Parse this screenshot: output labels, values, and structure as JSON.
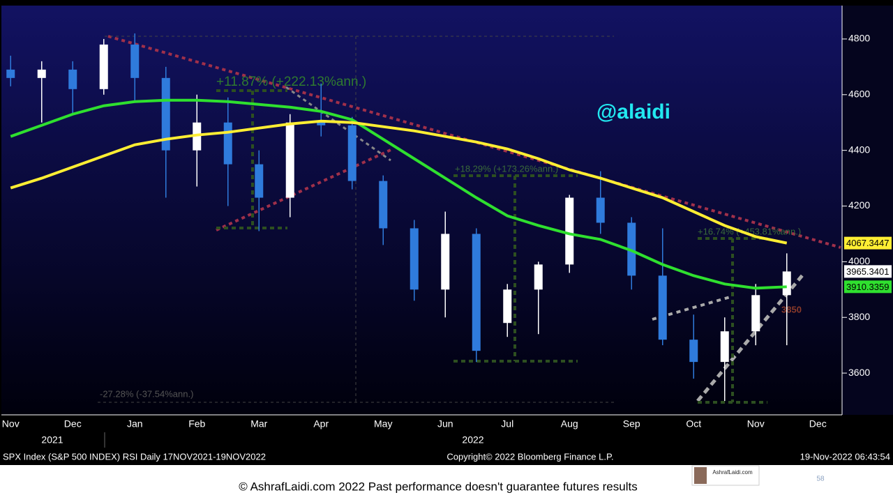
{
  "chart_data": {
    "type": "candlestick",
    "watermark": "@alaidi",
    "categories": [
      "Nov",
      null,
      "Dec",
      null,
      "Jan",
      null,
      "Feb",
      null,
      "Mar",
      null,
      "Apr",
      null,
      "May",
      null,
      "Jun",
      null,
      "Jul",
      null,
      "Aug",
      null,
      "Sep",
      null,
      "Oct",
      null,
      "Nov",
      null,
      "Dec"
    ],
    "year_labels": [
      "2021",
      "2022"
    ],
    "open": [
      4690,
      4660,
      4690,
      4620,
      4780,
      4660,
      4400,
      4500,
      4350,
      4230,
      4500,
      4490,
      4290,
      4120,
      3900,
      4100,
      3780,
      3900,
      3990,
      4230,
      4140,
      3950,
      3720,
      3640,
      3750,
      3880,
      null
    ],
    "high": [
      4740,
      4720,
      4720,
      4800,
      4820,
      4700,
      4600,
      4590,
      4400,
      4530,
      4640,
      4520,
      4310,
      4150,
      4180,
      4120,
      3920,
      4000,
      4240,
      4325,
      4160,
      4120,
      3810,
      3800,
      3920,
      4030,
      null
    ],
    "low": [
      4630,
      4500,
      4530,
      4600,
      4580,
      4230,
      4270,
      4200,
      4110,
      4160,
      4450,
      4260,
      4060,
      3860,
      3800,
      3640,
      3730,
      3740,
      3960,
      4100,
      3900,
      3700,
      3580,
      3500,
      3700,
      3700,
      null
    ],
    "close": [
      4660,
      4690,
      4620,
      4780,
      4660,
      4400,
      4500,
      4350,
      4230,
      4500,
      4490,
      4290,
      4120,
      3900,
      4100,
      3680,
      3900,
      3990,
      4230,
      4140,
      3950,
      3720,
      3640,
      3750,
      3880,
      3965,
      null
    ],
    "up_color": "#ffffff",
    "down_color": "#2f7bdc",
    "series": [
      {
        "name": "MA 100",
        "color": "#2fe02f",
        "values": [
          4450,
          4490,
          4530,
          4560,
          4575,
          4580,
          4580,
          4575,
          4565,
          4555,
          4540,
          4510,
          4440,
          4370,
          4300,
          4230,
          4165,
          4130,
          4100,
          4080,
          4040,
          3990,
          3950,
          3920,
          3905,
          3910,
          null
        ],
        "last_label": "3910.3359"
      },
      {
        "name": "MA 200",
        "color": "#ffee33",
        "values": [
          4265,
          4300,
          4340,
          4380,
          4420,
          4440,
          4455,
          4465,
          4480,
          4495,
          4505,
          4500,
          4485,
          4470,
          4450,
          4430,
          4405,
          4370,
          4330,
          4300,
          4265,
          4230,
          4180,
          4130,
          4090,
          4067,
          null
        ],
        "last_label": "4067.3447"
      }
    ],
    "last_price_label": "3965.3401",
    "ylim": [
      3450,
      4920
    ],
    "yticks": [
      3600,
      3800,
      4000,
      4200,
      4400,
      4600,
      4800
    ],
    "annotations": [
      "+11.87% (+222.13%ann.)",
      "+18.29% (+173.26%ann.)",
      "+16.74% (+453.81%ann.)",
      "-27.28% (-37.54%ann.)",
      "3850"
    ],
    "info_bar": [
      "SPX Index (S&P 500 INDEX) RSI  Daily 17NOV2021-19NOV2022",
      "Copyright© 2022 Bloomberg Finance L.P.",
      "19-Nov-2022 06:43:54"
    ],
    "footer": "© AshrafLaidi.com 2022 Past performance doesn't guarantee futures results",
    "page_number": "58",
    "logo_text": "AshrafLaidi.com"
  }
}
